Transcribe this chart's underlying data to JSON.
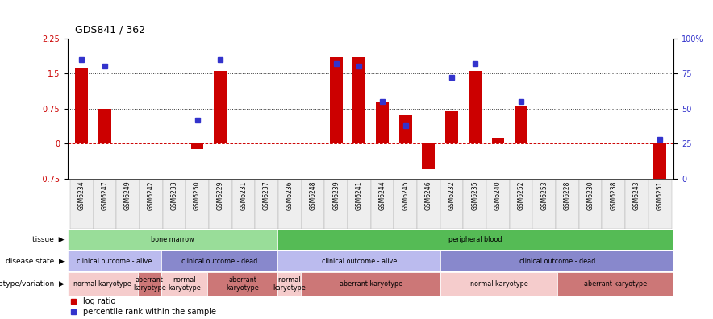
{
  "title": "GDS841 / 362",
  "samples": [
    "GSM6234",
    "GSM6247",
    "GSM6249",
    "GSM6242",
    "GSM6233",
    "GSM6250",
    "GSM6229",
    "GSM6231",
    "GSM6237",
    "GSM6236",
    "GSM6248",
    "GSM6239",
    "GSM6241",
    "GSM6244",
    "GSM6245",
    "GSM6246",
    "GSM6232",
    "GSM6235",
    "GSM6240",
    "GSM6252",
    "GSM6253",
    "GSM6228",
    "GSM6230",
    "GSM6238",
    "GSM6243",
    "GSM6251"
  ],
  "log_ratio": [
    1.6,
    0.75,
    0.0,
    0.0,
    0.0,
    -0.12,
    1.55,
    0.0,
    0.0,
    0.0,
    0.0,
    1.85,
    1.85,
    0.9,
    0.6,
    -0.55,
    0.7,
    1.55,
    0.12,
    0.8,
    0.0,
    0.0,
    0.0,
    0.0,
    0.0,
    -0.75
  ],
  "percentile": [
    85,
    80,
    0,
    0,
    0,
    42,
    85,
    0,
    0,
    0,
    0,
    82,
    80,
    55,
    38,
    0,
    72,
    82,
    0,
    55,
    0,
    0,
    0,
    0,
    0,
    28
  ],
  "bar_color": "#cc0000",
  "dot_color": "#3333cc",
  "ylim_left": [
    -0.75,
    2.25
  ],
  "ylim_right": [
    0,
    100
  ],
  "yticks_left": [
    -0.75,
    0,
    0.75,
    1.5,
    2.25
  ],
  "yticks_right": [
    0,
    25,
    50,
    75,
    100
  ],
  "hline_vals": [
    0,
    0.75,
    1.5
  ],
  "hline_styles": [
    "--",
    ":",
    ":"
  ],
  "hline_colors": [
    "#cc0000",
    "#333333",
    "#333333"
  ],
  "tissue_groups": [
    {
      "label": "bone marrow",
      "start": 0,
      "end": 8,
      "color": "#99dd99"
    },
    {
      "label": "peripheral blood",
      "start": 9,
      "end": 25,
      "color": "#55bb55"
    }
  ],
  "disease_groups": [
    {
      "label": "clinical outcome - alive",
      "start": 0,
      "end": 3,
      "color": "#bbbbee"
    },
    {
      "label": "clinical outcome - dead",
      "start": 4,
      "end": 8,
      "color": "#8888cc"
    },
    {
      "label": "clinical outcome - alive",
      "start": 9,
      "end": 15,
      "color": "#bbbbee"
    },
    {
      "label": "clinical outcome - dead",
      "start": 16,
      "end": 25,
      "color": "#8888cc"
    }
  ],
  "genotype_groups": [
    {
      "label": "normal karyotype",
      "start": 0,
      "end": 2,
      "color": "#f5cccc"
    },
    {
      "label": "aberrant\nkaryotype",
      "start": 3,
      "end": 3,
      "color": "#cc7777"
    },
    {
      "label": "normal\nkaryotype",
      "start": 4,
      "end": 5,
      "color": "#f5cccc"
    },
    {
      "label": "aberrant\nkaryotype",
      "start": 6,
      "end": 8,
      "color": "#cc7777"
    },
    {
      "label": "normal\nkaryotype",
      "start": 9,
      "end": 9,
      "color": "#f5cccc"
    },
    {
      "label": "aberrant karyotype",
      "start": 10,
      "end": 15,
      "color": "#cc7777"
    },
    {
      "label": "normal karyotype",
      "start": 16,
      "end": 20,
      "color": "#f5cccc"
    },
    {
      "label": "aberrant karyotype",
      "start": 21,
      "end": 25,
      "color": "#cc7777"
    }
  ],
  "legend_items": [
    {
      "color": "#cc0000",
      "label": "log ratio"
    },
    {
      "color": "#3333cc",
      "label": "percentile rank within the sample"
    }
  ]
}
